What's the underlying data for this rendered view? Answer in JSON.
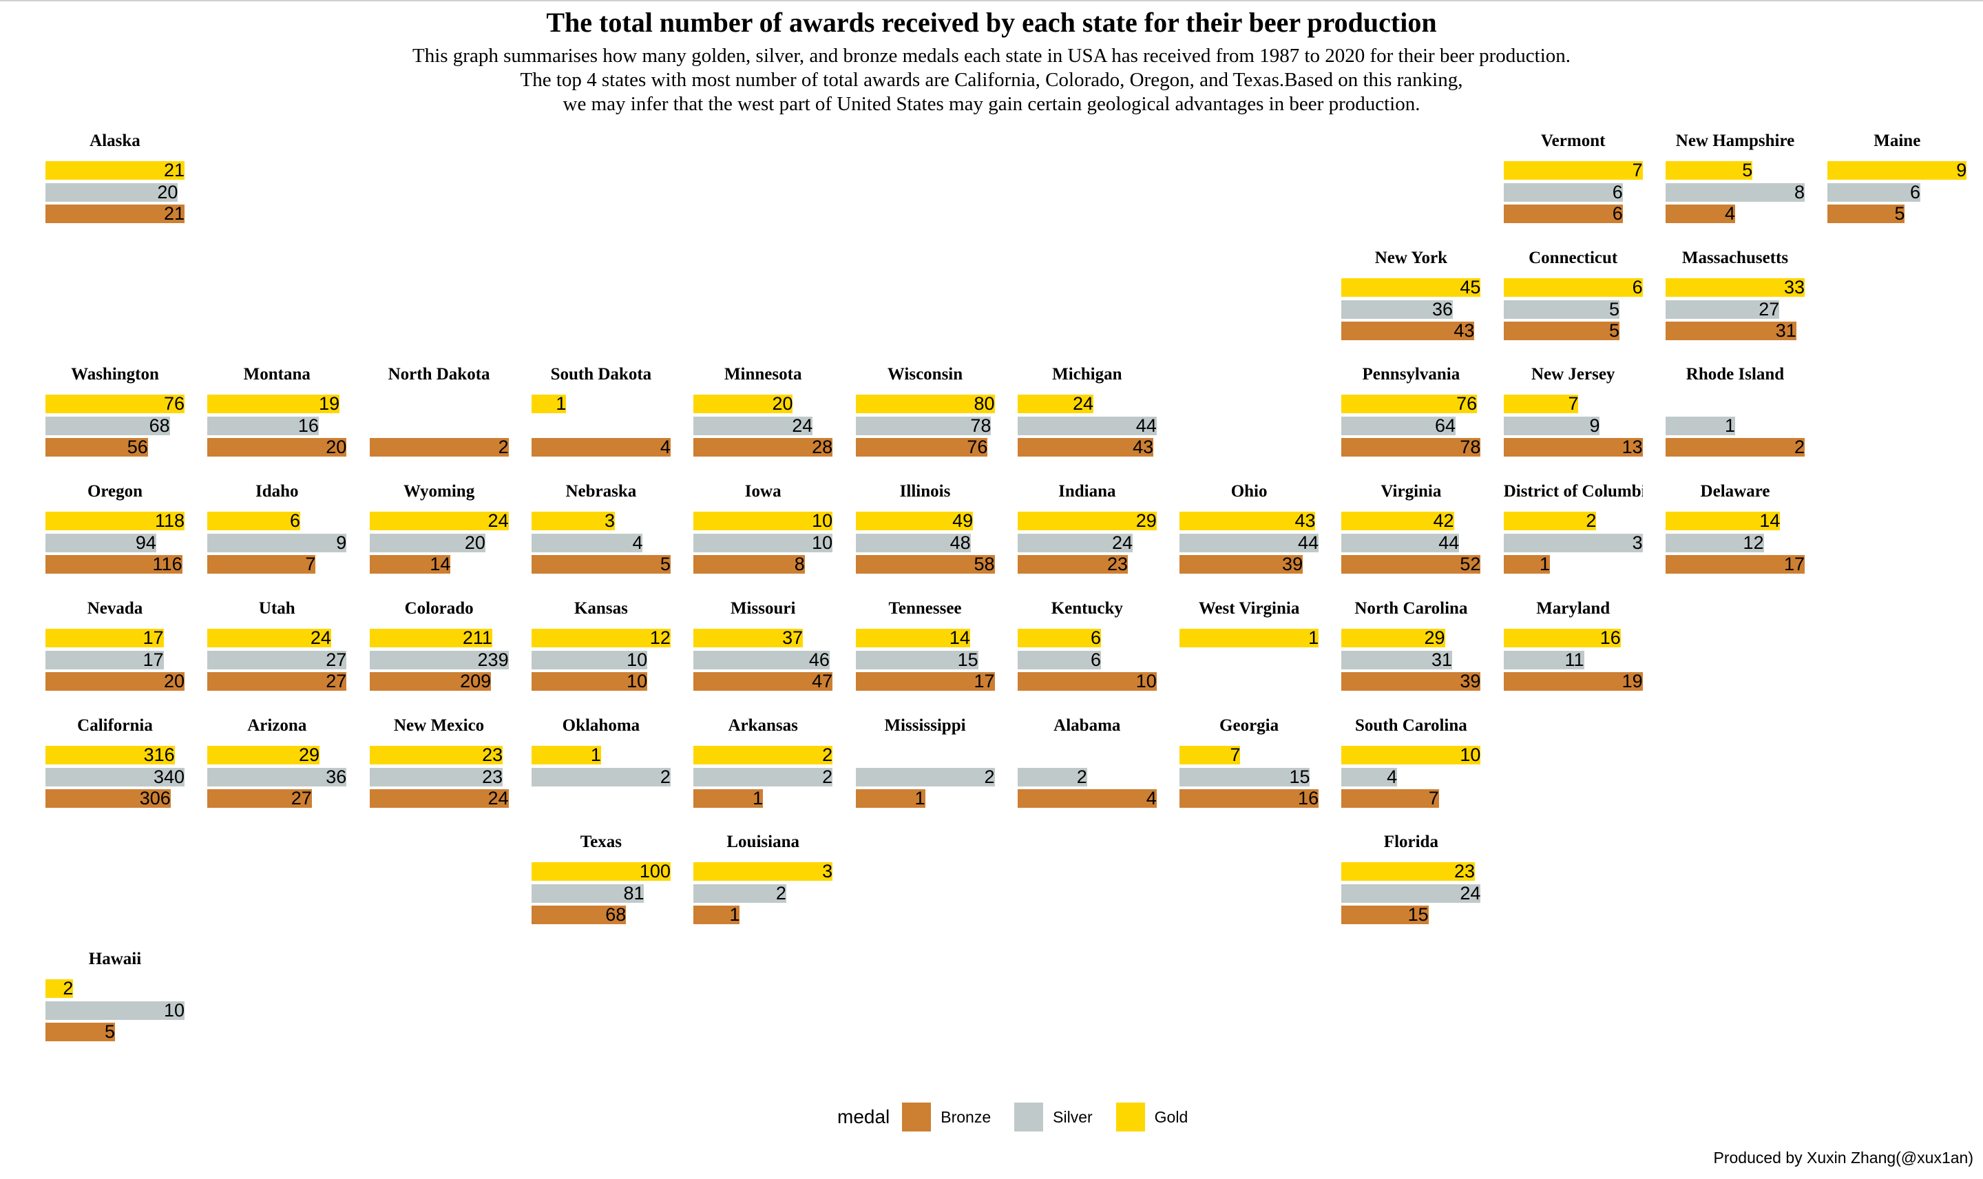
{
  "title": "The total number of awards received by each state for their beer production",
  "subtitle_lines": [
    "This graph summarises how many golden, silver, and bronze medals each state in USA has received from 1987 to 2020 for their beer production.",
    "The top 4 states with most number of total awards are California, Colorado, Oregon, and Texas.Based on this ranking,",
    "we may infer that the west  part of United States may gain certain geological advantages in beer production."
  ],
  "legend": {
    "title": "medal",
    "items": [
      {
        "label": "Bronze",
        "color": "#CD7F32"
      },
      {
        "label": "Silver",
        "color": "#C0C9C9"
      },
      {
        "label": "Gold",
        "color": "#FFD700"
      }
    ]
  },
  "credit": "Produced by Xuxin Zhang(@xux1an)",
  "colors": {
    "gold": "#FFD700",
    "silver": "#C0C9C9",
    "bronze": "#CD7F32"
  },
  "chart_data": {
    "type": "bar",
    "orientation": "horizontal",
    "layout": "geofacet grid of US states",
    "series_order": [
      "Gold",
      "Silver",
      "Bronze"
    ],
    "legend_position": "bottom",
    "grid": false,
    "states": [
      {
        "name": "Alaska",
        "row": 1,
        "col": 1,
        "gold": 21,
        "silver": 20,
        "bronze": 21
      },
      {
        "name": "Vermont",
        "row": 1,
        "col": 10,
        "gold": 7,
        "silver": 6,
        "bronze": 6
      },
      {
        "name": "New Hampshire",
        "row": 1,
        "col": 11,
        "gold": 5,
        "silver": 8,
        "bronze": 4
      },
      {
        "name": "Maine",
        "row": 1,
        "col": 12,
        "gold": 9,
        "silver": 6,
        "bronze": 5
      },
      {
        "name": "New York",
        "row": 2,
        "col": 9,
        "gold": 45,
        "silver": 36,
        "bronze": 43
      },
      {
        "name": "Connecticut",
        "row": 2,
        "col": 10,
        "gold": 6,
        "silver": 5,
        "bronze": 5
      },
      {
        "name": "Massachusetts",
        "row": 2,
        "col": 11,
        "gold": 33,
        "silver": 27,
        "bronze": 31
      },
      {
        "name": "Washington",
        "row": 3,
        "col": 1,
        "gold": 76,
        "silver": 68,
        "bronze": 56
      },
      {
        "name": "Montana",
        "row": 3,
        "col": 2,
        "gold": 19,
        "silver": 16,
        "bronze": 20
      },
      {
        "name": "North Dakota",
        "row": 3,
        "col": 3,
        "gold": null,
        "silver": null,
        "bronze": 2
      },
      {
        "name": "South Dakota",
        "row": 3,
        "col": 4,
        "gold": 1,
        "silver": null,
        "bronze": 4
      },
      {
        "name": "Minnesota",
        "row": 3,
        "col": 5,
        "gold": 20,
        "silver": 24,
        "bronze": 28
      },
      {
        "name": "Wisconsin",
        "row": 3,
        "col": 6,
        "gold": 80,
        "silver": 78,
        "bronze": 76
      },
      {
        "name": "Michigan",
        "row": 3,
        "col": 7,
        "gold": 24,
        "silver": 44,
        "bronze": 43
      },
      {
        "name": "Pennsylvania",
        "row": 3,
        "col": 9,
        "gold": 76,
        "silver": 64,
        "bronze": 78
      },
      {
        "name": "New Jersey",
        "row": 3,
        "col": 10,
        "gold": 7,
        "silver": 9,
        "bronze": 13
      },
      {
        "name": "Rhode Island",
        "row": 3,
        "col": 11,
        "gold": null,
        "silver": 1,
        "bronze": 2
      },
      {
        "name": "Oregon",
        "row": 4,
        "col": 1,
        "gold": 118,
        "silver": 94,
        "bronze": 116
      },
      {
        "name": "Idaho",
        "row": 4,
        "col": 2,
        "gold": 6,
        "silver": 9,
        "bronze": 7
      },
      {
        "name": "Wyoming",
        "row": 4,
        "col": 3,
        "gold": 24,
        "silver": 20,
        "bronze": 14
      },
      {
        "name": "Nebraska",
        "row": 4,
        "col": 4,
        "gold": 3,
        "silver": 4,
        "bronze": 5
      },
      {
        "name": "Iowa",
        "row": 4,
        "col": 5,
        "gold": 10,
        "silver": 10,
        "bronze": 8
      },
      {
        "name": "Illinois",
        "row": 4,
        "col": 6,
        "gold": 49,
        "silver": 48,
        "bronze": 58
      },
      {
        "name": "Indiana",
        "row": 4,
        "col": 7,
        "gold": 29,
        "silver": 24,
        "bronze": 23
      },
      {
        "name": "Ohio",
        "row": 4,
        "col": 8,
        "gold": 43,
        "silver": 44,
        "bronze": 39
      },
      {
        "name": "Virginia",
        "row": 4,
        "col": 9,
        "gold": 42,
        "silver": 44,
        "bronze": 52
      },
      {
        "name": "District of Columbia",
        "row": 4,
        "col": 10,
        "gold": 2,
        "silver": 3,
        "bronze": 1
      },
      {
        "name": "Delaware",
        "row": 4,
        "col": 11,
        "gold": 14,
        "silver": 12,
        "bronze": 17
      },
      {
        "name": "Nevada",
        "row": 5,
        "col": 1,
        "gold": 17,
        "silver": 17,
        "bronze": 20
      },
      {
        "name": "Utah",
        "row": 5,
        "col": 2,
        "gold": 24,
        "silver": 27,
        "bronze": 27
      },
      {
        "name": "Colorado",
        "row": 5,
        "col": 3,
        "gold": 211,
        "silver": 239,
        "bronze": 209
      },
      {
        "name": "Kansas",
        "row": 5,
        "col": 4,
        "gold": 12,
        "silver": 10,
        "bronze": 10
      },
      {
        "name": "Missouri",
        "row": 5,
        "col": 5,
        "gold": 37,
        "silver": 46,
        "bronze": 47
      },
      {
        "name": "Tennessee",
        "row": 5,
        "col": 6,
        "gold": 14,
        "silver": 15,
        "bronze": 17
      },
      {
        "name": "Kentucky",
        "row": 5,
        "col": 7,
        "gold": 6,
        "silver": 6,
        "bronze": 10
      },
      {
        "name": "West Virginia",
        "row": 5,
        "col": 8,
        "gold": 1,
        "silver": null,
        "bronze": null
      },
      {
        "name": "North Carolina",
        "row": 5,
        "col": 9,
        "gold": 29,
        "silver": 31,
        "bronze": 39
      },
      {
        "name": "Maryland",
        "row": 5,
        "col": 10,
        "gold": 16,
        "silver": 11,
        "bronze": 19
      },
      {
        "name": "California",
        "row": 6,
        "col": 1,
        "gold": 316,
        "silver": 340,
        "bronze": 306
      },
      {
        "name": "Arizona",
        "row": 6,
        "col": 2,
        "gold": 29,
        "silver": 36,
        "bronze": 27
      },
      {
        "name": "New Mexico",
        "row": 6,
        "col": 3,
        "gold": 23,
        "silver": 23,
        "bronze": 24
      },
      {
        "name": "Oklahoma",
        "row": 6,
        "col": 4,
        "gold": 1,
        "silver": 2,
        "bronze": null
      },
      {
        "name": "Arkansas",
        "row": 6,
        "col": 5,
        "gold": 2,
        "silver": 2,
        "bronze": 1
      },
      {
        "name": "Mississippi",
        "row": 6,
        "col": 6,
        "gold": null,
        "silver": 2,
        "bronze": 1
      },
      {
        "name": "Alabama",
        "row": 6,
        "col": 7,
        "gold": null,
        "silver": 2,
        "bronze": 4
      },
      {
        "name": "Georgia",
        "row": 6,
        "col": 8,
        "gold": 7,
        "silver": 15,
        "bronze": 16
      },
      {
        "name": "South Carolina",
        "row": 6,
        "col": 9,
        "gold": 10,
        "silver": 4,
        "bronze": 7
      },
      {
        "name": "Texas",
        "row": 7,
        "col": 4,
        "gold": 100,
        "silver": 81,
        "bronze": 68
      },
      {
        "name": "Louisiana",
        "row": 7,
        "col": 5,
        "gold": 3,
        "silver": 2,
        "bronze": 1
      },
      {
        "name": "Florida",
        "row": 7,
        "col": 9,
        "gold": 23,
        "silver": 24,
        "bronze": 15
      },
      {
        "name": "Hawaii",
        "row": 8,
        "col": 1,
        "gold": 2,
        "silver": 10,
        "bronze": 5
      }
    ]
  }
}
